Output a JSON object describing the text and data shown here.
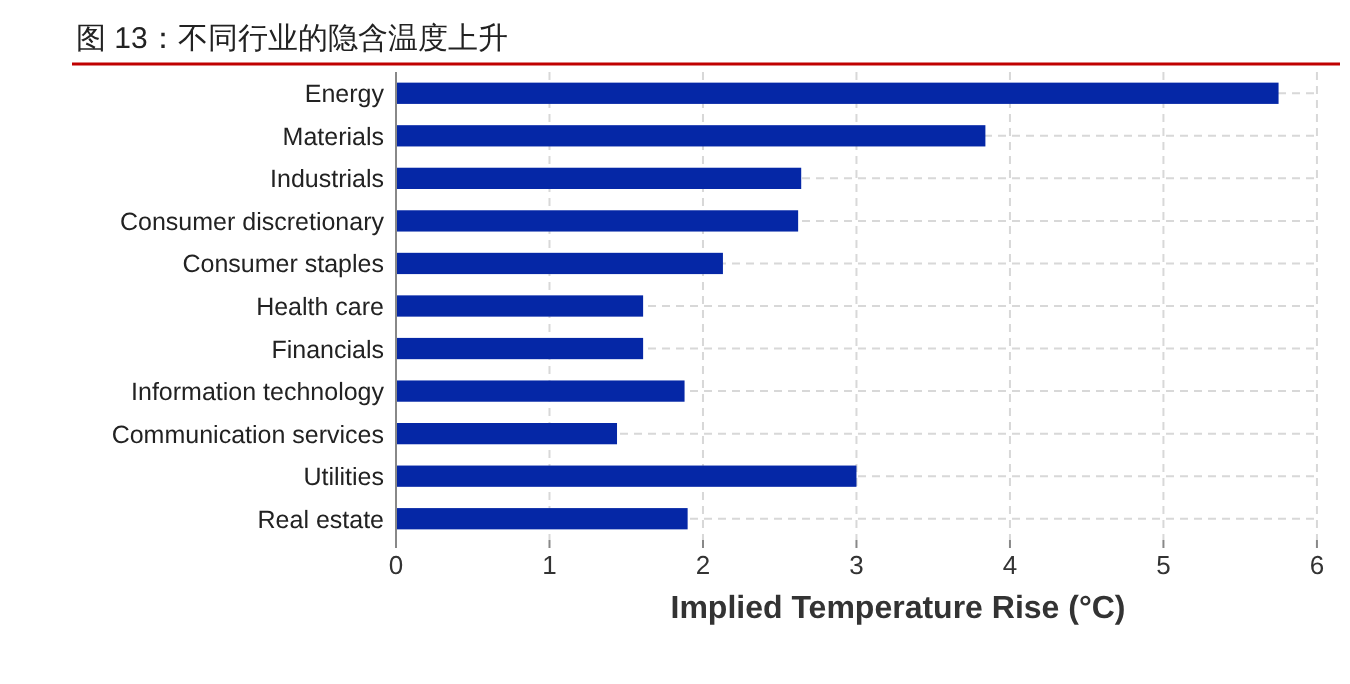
{
  "chart_data": {
    "type": "bar",
    "orientation": "horizontal",
    "title": "图 13：不同行业的隐含温度上升",
    "xlabel": "Implied Temperature Rise (°C)",
    "categories": [
      "Energy",
      "Materials",
      "Industrials",
      "Consumer discretionary",
      "Consumer staples",
      "Health care",
      "Financials",
      "Information technology",
      "Communication services",
      "Utilities",
      "Real estate"
    ],
    "values": [
      5.75,
      3.84,
      2.64,
      2.62,
      2.13,
      1.61,
      1.61,
      1.88,
      1.44,
      3.0,
      1.9
    ],
    "color": "#0527a6",
    "xlim": [
      0,
      6.02
    ],
    "xticks": [
      0,
      1,
      2,
      3,
      4,
      5,
      6
    ],
    "grid": true
  }
}
